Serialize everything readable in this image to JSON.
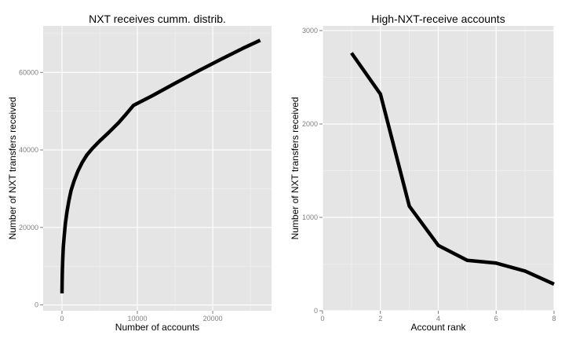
{
  "chart_data": [
    {
      "type": "line",
      "title": "NXT receives cumm. distrib.",
      "xlabel": "Number of accounts",
      "ylabel": "Number of NXT transfers received",
      "xlim": [
        -2500,
        27800
      ],
      "ylim": [
        -1500,
        72000
      ],
      "xticks": [
        0,
        10000,
        20000
      ],
      "yticks": [
        0,
        20000,
        40000,
        60000
      ],
      "x_tick_labels": [
        "0",
        "10000",
        "20000"
      ],
      "y_tick_labels": [
        "0",
        "20000",
        "40000",
        "60000"
      ],
      "grid": true,
      "background": "#e5e5e5",
      "line_color": "#000000",
      "series": [
        {
          "x": [
            0,
            20,
            50,
            100,
            180,
            300,
            450,
            650,
            900,
            1200,
            1600,
            2100,
            2700,
            3300,
            4000,
            5000,
            6200,
            7500,
            8500,
            9500,
            12000,
            15000,
            18000,
            21000,
            24000,
            26300
          ],
          "y": [
            3000,
            6000,
            9000,
            12000,
            15000,
            18000,
            21000,
            24000,
            26800,
            29500,
            32000,
            34500,
            36800,
            38700,
            40300,
            42300,
            44500,
            47000,
            49200,
            51500,
            54000,
            57200,
            60300,
            63300,
            66200,
            68300
          ]
        }
      ]
    },
    {
      "type": "line",
      "title": "High-NXT-receive accounts",
      "xlabel": "Account rank",
      "ylabel": "Number of NXT transfers received",
      "xlim": [
        0,
        8
      ],
      "ylim": [
        0,
        3050
      ],
      "xticks": [
        0,
        2,
        4,
        6,
        8
      ],
      "yticks": [
        0,
        1000,
        2000,
        3000
      ],
      "x_tick_labels": [
        "0",
        "2",
        "4",
        "6",
        "8"
      ],
      "y_tick_labels": [
        "0",
        "1000",
        "2000",
        "3000"
      ],
      "grid": true,
      "background": "#e5e5e5",
      "line_color": "#000000",
      "series": [
        {
          "x": [
            1,
            2,
            3,
            4,
            5,
            6,
            7,
            8
          ],
          "y": [
            2760,
            2320,
            1120,
            700,
            540,
            510,
            425,
            285
          ]
        }
      ]
    }
  ]
}
